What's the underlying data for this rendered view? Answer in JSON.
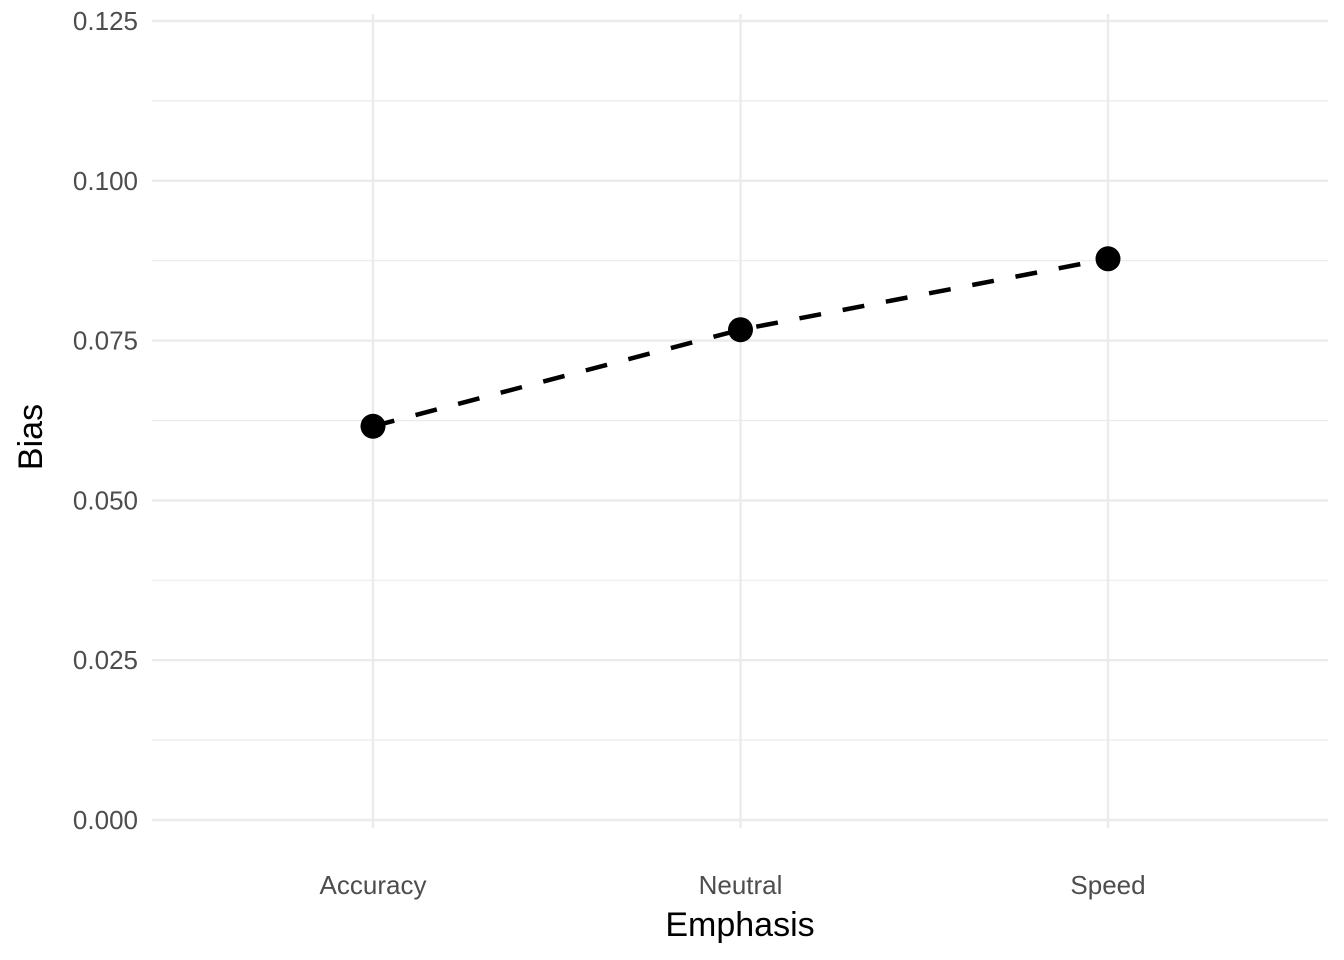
{
  "chart_data": {
    "type": "line",
    "title": "",
    "xlabel": "Emphasis",
    "ylabel": "Bias",
    "categories": [
      "Accuracy",
      "Neutral",
      "Speed"
    ],
    "series": [
      {
        "values": [
          0.0616,
          0.0767,
          0.0878
        ],
        "line_style": "dashed",
        "color": "#000000",
        "markers": true
      }
    ],
    "ylim": [
      0,
      0.125
    ],
    "yticks": [
      0.0,
      0.025,
      0.05,
      0.075,
      0.1,
      0.125
    ],
    "ytick_labels": [
      "0.000",
      "0.025",
      "0.050",
      "0.075",
      "0.100",
      "0.125"
    ],
    "grid": true,
    "grid_color": "#ebebeb",
    "legend": "none"
  }
}
